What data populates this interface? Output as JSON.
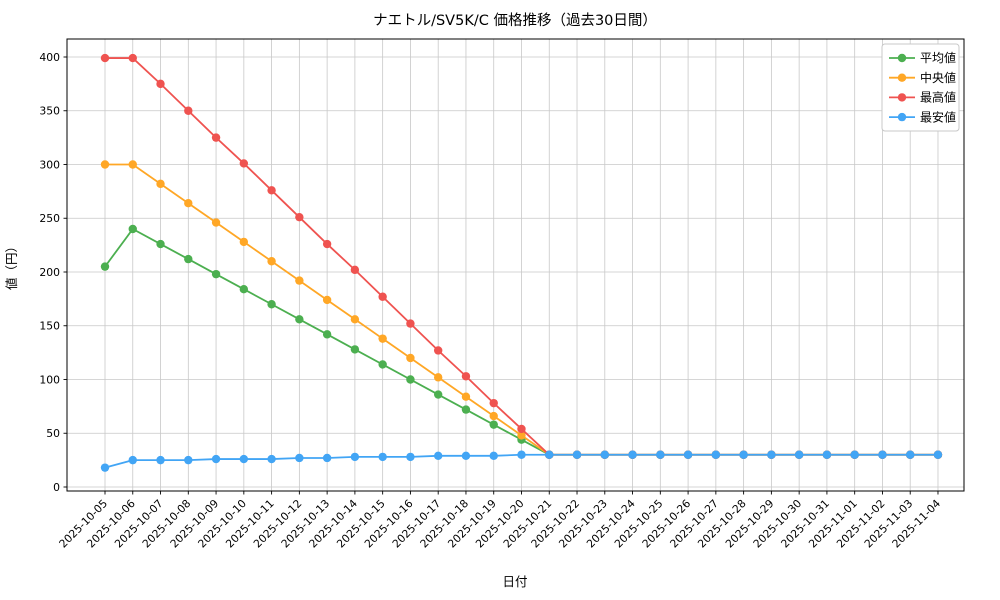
{
  "title": "ナエトル/SV5K/C 価格推移（過去30日間）",
  "chart_data": {
    "type": "line",
    "title": "ナエトル/SV5K/C 価格推移（過去30日間）",
    "xlabel": "日付",
    "ylabel": "値（円）",
    "ylim": [
      0,
      400
    ],
    "yticks": [
      0,
      50,
      100,
      150,
      200,
      250,
      300,
      350,
      400
    ],
    "grid": true,
    "legend_position": "upper right",
    "x": [
      "2025-10-05",
      "2025-10-06",
      "2025-10-07",
      "2025-10-08",
      "2025-10-09",
      "2025-10-10",
      "2025-10-11",
      "2025-10-12",
      "2025-10-13",
      "2025-10-14",
      "2025-10-15",
      "2025-10-16",
      "2025-10-17",
      "2025-10-18",
      "2025-10-19",
      "2025-10-20",
      "2025-10-21",
      "2025-10-22",
      "2025-10-23",
      "2025-10-24",
      "2025-10-25",
      "2025-10-26",
      "2025-10-27",
      "2025-10-28",
      "2025-10-29",
      "2025-10-30",
      "2025-10-31",
      "2025-11-01",
      "2025-11-02",
      "2025-11-03",
      "2025-11-04"
    ],
    "series": [
      {
        "id": "avg",
        "name": "平均値",
        "color": "#4caf50",
        "values": [
          205,
          240,
          226,
          212,
          198,
          184,
          170,
          156,
          142,
          128,
          114,
          100,
          86,
          72,
          58,
          44,
          30,
          30,
          30,
          30,
          30,
          30,
          30,
          30,
          30,
          30,
          30,
          30,
          30,
          30,
          30
        ]
      },
      {
        "id": "median",
        "name": "中央値",
        "color": "#ffa726",
        "values": [
          300,
          300,
          282,
          264,
          246,
          228,
          210,
          192,
          174,
          156,
          138,
          120,
          102,
          84,
          66,
          48,
          30,
          30,
          30,
          30,
          30,
          30,
          30,
          30,
          30,
          30,
          30,
          30,
          30,
          30,
          30
        ]
      },
      {
        "id": "max",
        "name": "最高値",
        "color": "#ef5350",
        "values": [
          399,
          399,
          375,
          350,
          325,
          301,
          276,
          251,
          226,
          202,
          177,
          152,
          127,
          103,
          78,
          54,
          30,
          30,
          30,
          30,
          30,
          30,
          30,
          30,
          30,
          30,
          30,
          30,
          30,
          30,
          30
        ]
      },
      {
        "id": "min",
        "name": "最安値",
        "color": "#42a5f5",
        "values": [
          18,
          25,
          25,
          25,
          26,
          26,
          26,
          27,
          27,
          28,
          28,
          28,
          29,
          29,
          29,
          30,
          30,
          30,
          30,
          30,
          30,
          30,
          30,
          30,
          30,
          30,
          30,
          30,
          30,
          30,
          30
        ]
      }
    ]
  }
}
